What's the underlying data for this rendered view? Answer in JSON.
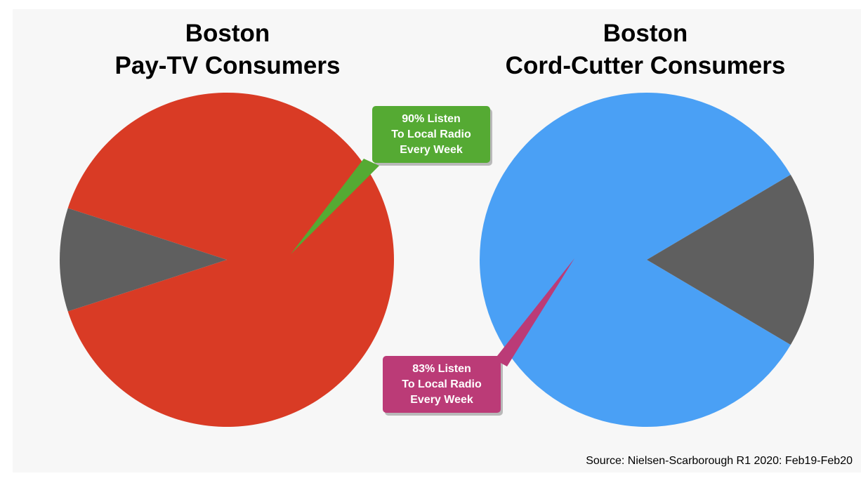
{
  "chart_data": [
    {
      "type": "pie",
      "title": [
        "Boston",
        "Pay-TV Consumers"
      ],
      "slices": [
        {
          "label": "90% Listen To Local Radio Every Week",
          "value": 90,
          "color": "#d93b25"
        },
        {
          "label": "",
          "value": 10,
          "color": "#5f5f5f"
        }
      ],
      "callout": {
        "lines": [
          "90% Listen",
          "To Local Radio",
          "Every Week"
        ],
        "color": "#55aa33"
      }
    },
    {
      "type": "pie",
      "title": [
        "Boston",
        "Cord-Cutter Consumers"
      ],
      "slices": [
        {
          "label": "83% Listen To Local Radio Every Week",
          "value": 83,
          "color": "#4aa0f5"
        },
        {
          "label": "",
          "value": 17,
          "color": "#5f5f5f"
        }
      ],
      "callout": {
        "lines": [
          "83% Listen",
          "To Local Radio",
          "Every Week"
        ],
        "color": "#bb3b77"
      }
    }
  ],
  "source": "Source: Nielsen-Scarborough R1 2020: Feb19-Feb20"
}
